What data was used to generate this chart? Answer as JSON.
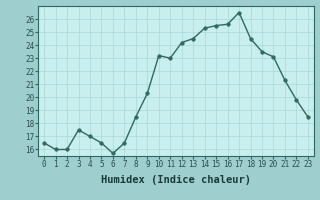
{
  "xlabel": "Humidex (Indice chaleur)",
  "x": [
    0,
    1,
    2,
    3,
    4,
    5,
    6,
    7,
    8,
    9,
    10,
    11,
    12,
    13,
    14,
    15,
    16,
    17,
    18,
    19,
    20,
    21,
    22,
    23
  ],
  "y": [
    16.5,
    16.0,
    16.0,
    17.5,
    17.0,
    16.5,
    15.7,
    16.5,
    18.5,
    20.3,
    23.2,
    23.0,
    24.2,
    24.5,
    25.3,
    25.5,
    25.6,
    26.5,
    24.5,
    23.5,
    23.1,
    21.3,
    19.8,
    18.5
  ],
  "line_color": "#2e6b5e",
  "marker_color": "#2e6b5e",
  "fig_bg_color": "#9ecece",
  "plot_bg_color": "#c8eeee",
  "grid_color": "#aad8d8",
  "spine_color": "#2e6b5e",
  "tick_label_color": "#2e4e4e",
  "xlabel_color": "#1a3a3a",
  "ylim": [
    15.5,
    27
  ],
  "yticks": [
    16,
    17,
    18,
    19,
    20,
    21,
    22,
    23,
    24,
    25,
    26
  ],
  "xlim": [
    -0.5,
    23.5
  ],
  "xticks": [
    0,
    1,
    2,
    3,
    4,
    5,
    6,
    7,
    8,
    9,
    10,
    11,
    12,
    13,
    14,
    15,
    16,
    17,
    18,
    19,
    20,
    21,
    22,
    23
  ],
  "tick_fontsize": 5.5,
  "xlabel_fontsize": 7.5,
  "marker_size": 2.5,
  "line_width": 1.0
}
